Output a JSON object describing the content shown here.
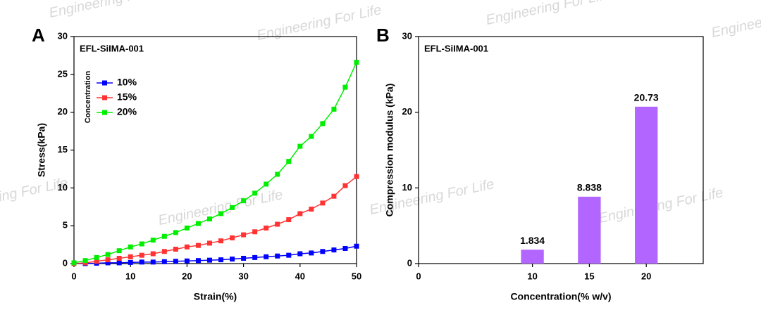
{
  "watermark": "Engineering For Life",
  "chart_data": [
    {
      "type": "line",
      "panel": "A",
      "title": "EFL-SiIMA-001",
      "xlabel": "Strain(%)",
      "ylabel": "Stress(kPa)",
      "legend_title": "Concentration",
      "xlim": [
        0,
        50
      ],
      "xticks": [
        0,
        10,
        20,
        30,
        40,
        50
      ],
      "ylim": [
        0,
        30
      ],
      "yticks": [
        0,
        5,
        10,
        15,
        20,
        25,
        30
      ],
      "x": [
        0,
        2,
        4,
        6,
        8,
        10,
        12,
        14,
        16,
        18,
        20,
        22,
        24,
        26,
        28,
        30,
        32,
        34,
        36,
        38,
        40,
        42,
        44,
        46,
        48,
        50
      ],
      "series": [
        {
          "name": "10%",
          "color": "#0000ff",
          "values": [
            0,
            0,
            0.05,
            0.1,
            0.1,
            0.15,
            0.2,
            0.2,
            0.25,
            0.3,
            0.35,
            0.4,
            0.45,
            0.5,
            0.6,
            0.7,
            0.8,
            0.9,
            1.0,
            1.1,
            1.3,
            1.4,
            1.6,
            1.8,
            2.0,
            2.3
          ]
        },
        {
          "name": "15%",
          "color": "#ff3333",
          "values": [
            0,
            0.1,
            0.3,
            0.5,
            0.7,
            0.9,
            1.1,
            1.3,
            1.6,
            1.9,
            2.2,
            2.4,
            2.7,
            3.0,
            3.4,
            3.8,
            4.2,
            4.7,
            5.2,
            5.8,
            6.6,
            7.2,
            8.0,
            8.9,
            10.3,
            11.5
          ]
        },
        {
          "name": "20%",
          "color": "#00ee00",
          "values": [
            0.1,
            0.4,
            0.8,
            1.2,
            1.7,
            2.2,
            2.6,
            3.1,
            3.6,
            4.1,
            4.7,
            5.3,
            5.9,
            6.6,
            7.4,
            8.3,
            9.3,
            10.5,
            11.8,
            13.5,
            15.5,
            16.8,
            18.5,
            20.4,
            23.3,
            26.6
          ]
        }
      ]
    },
    {
      "type": "bar",
      "panel": "B",
      "title": "EFL-SiIMA-001",
      "xlabel": "Concentration(% w/v)",
      "ylabel": "Compression modulus (kPa)",
      "xlim": [
        0,
        25
      ],
      "xticks": [
        0,
        10,
        15,
        20
      ],
      "ylim": [
        0,
        30
      ],
      "yticks": [
        0,
        10,
        20,
        30
      ],
      "x": [
        10,
        15,
        20
      ],
      "values": [
        1.834,
        8.838,
        20.73
      ],
      "color": "#b366ff"
    }
  ]
}
